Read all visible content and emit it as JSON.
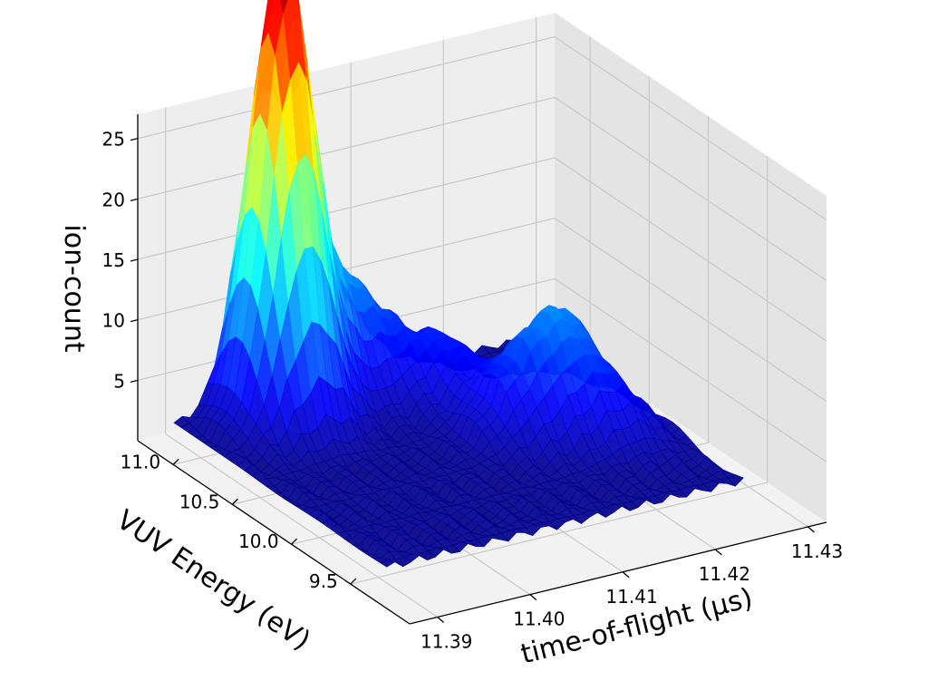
{
  "chart_data": {
    "type": "surface3d",
    "colormap": "jet",
    "xlabel": "time-of-flight (μs)",
    "ylabel": "VUV Energy (eV)",
    "zlabel": "ion-count",
    "x_ticks": [
      "11.39",
      "11.40",
      "11.41",
      "11.42",
      "11.43"
    ],
    "y_ticks": [
      "9.5",
      "10.0",
      "10.5",
      "11.0"
    ],
    "z_ticks": [
      "5",
      "10",
      "15",
      "20",
      "25"
    ],
    "xlim": [
      11.387,
      11.432
    ],
    "ylim": [
      9.0,
      11.3
    ],
    "zlim": [
      0,
      27
    ],
    "grid": true,
    "z_baseline": 1.5,
    "peaks": [
      {
        "x": 11.399,
        "y": 11.05,
        "z": 23.5
      },
      {
        "x": 11.398,
        "y": 10.9,
        "z": 21.5
      },
      {
        "x": 11.404,
        "y": 11.1,
        "z": 8.0
      },
      {
        "x": 11.408,
        "y": 11.0,
        "z": 7.5
      },
      {
        "x": 11.413,
        "y": 10.75,
        "z": 6.5
      },
      {
        "x": 11.414,
        "y": 10.3,
        "z": 6.0
      },
      {
        "x": 11.418,
        "y": 10.2,
        "z": 7.0
      },
      {
        "x": 11.421,
        "y": 10.4,
        "z": 7.5
      },
      {
        "x": 11.422,
        "y": 10.0,
        "z": 5.5
      }
    ]
  }
}
